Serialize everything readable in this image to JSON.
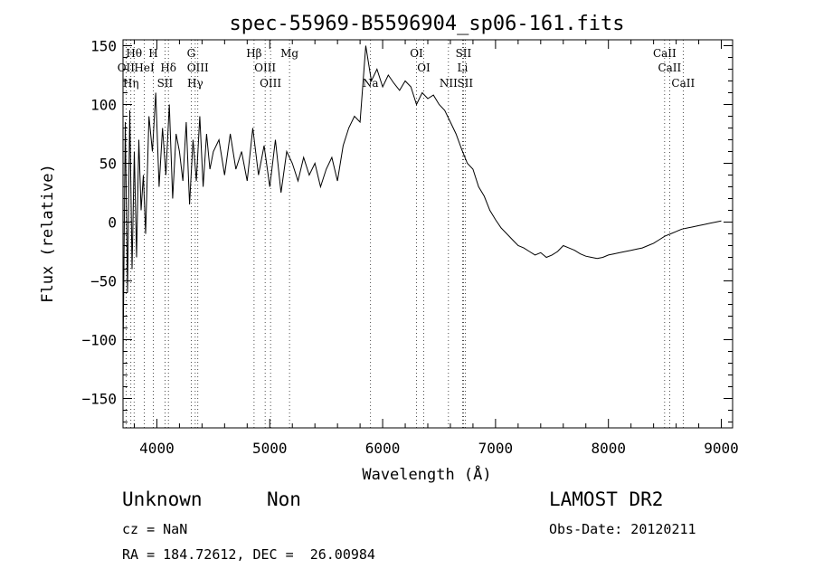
{
  "chart_data": {
    "type": "line",
    "title": "spec-55969-B5596904_sp06-161.fits",
    "xlabel": "Wavelength (Å)",
    "ylabel": "Flux (relative)",
    "xlim": [
      3700,
      9100
    ],
    "ylim": [
      -175,
      155
    ],
    "x_ticks": [
      4000,
      5000,
      6000,
      7000,
      8000,
      9000
    ],
    "y_ticks": [
      -150,
      -100,
      -50,
      0,
      50,
      100,
      150
    ],
    "x_tick_labels": [
      "4000",
      "5000",
      "6000",
      "7000",
      "8000",
      "9000"
    ],
    "y_tick_labels": [
      "−150",
      "−100",
      "−50",
      "0",
      "50",
      "100",
      "150"
    ],
    "grid": false,
    "series": [
      {
        "x": [
          3700,
          3720,
          3740,
          3760,
          3780,
          3800,
          3820,
          3840,
          3860,
          3880,
          3900,
          3930,
          3960,
          3990,
          4020,
          4050,
          4080,
          4110,
          4140,
          4170,
          4200,
          4230,
          4260,
          4290,
          4320,
          4350,
          4380,
          4410,
          4440,
          4470,
          4500,
          4550,
          4600,
          4650,
          4700,
          4750,
          4800,
          4850,
          4900,
          4950,
          5000,
          5050,
          5100,
          5150,
          5200,
          5250,
          5300,
          5350,
          5400,
          5450,
          5500,
          5550,
          5600,
          5650,
          5700,
          5750,
          5800,
          5850,
          5900,
          5950,
          6000,
          6050,
          6100,
          6150,
          6200,
          6250,
          6300,
          6350,
          6400,
          6450,
          6500,
          6550,
          6600,
          6650,
          6700,
          6750,
          6800,
          6850,
          6900,
          6950,
          7000,
          7050,
          7100,
          7150,
          7200,
          7250,
          7300,
          7350,
          7400,
          7450,
          7500,
          7550,
          7600,
          7650,
          7700,
          7750,
          7800,
          7850,
          7900,
          7950,
          8000,
          8050,
          8100,
          8150,
          8200,
          8250,
          8300,
          8350,
          8400,
          8450,
          8500,
          8550,
          8600,
          8650,
          8700,
          8750,
          8800,
          8850,
          8900,
          8950,
          9000
        ],
        "y": [
          -120,
          85,
          -60,
          95,
          -40,
          60,
          -30,
          70,
          10,
          40,
          -10,
          90,
          60,
          110,
          30,
          80,
          40,
          100,
          20,
          75,
          60,
          35,
          85,
          15,
          70,
          35,
          90,
          30,
          75,
          45,
          60,
          70,
          40,
          75,
          45,
          60,
          35,
          80,
          40,
          65,
          30,
          70,
          25,
          60,
          50,
          35,
          55,
          40,
          50,
          30,
          45,
          55,
          35,
          65,
          80,
          90,
          85,
          150,
          120,
          130,
          115,
          125,
          118,
          112,
          120,
          115,
          100,
          110,
          105,
          108,
          100,
          95,
          85,
          75,
          62,
          50,
          45,
          30,
          22,
          10,
          2,
          -5,
          -10,
          -15,
          -20,
          -22,
          -25,
          -28,
          -26,
          -30,
          -28,
          -25,
          -20,
          -22,
          -24,
          -27,
          -29,
          -30,
          -31,
          -30,
          -28,
          -27,
          -26,
          -25,
          -24,
          -23,
          -22,
          -20,
          -18,
          -15,
          -12,
          -10,
          -8,
          -6,
          -5,
          -4,
          -3,
          -2,
          -1,
          0,
          1
        ]
      }
    ],
    "lines": [
      {
        "wl": 3727,
        "label": "OII"
      },
      {
        "wl": 3770,
        "label": "Hη"
      },
      {
        "wl": 3798,
        "label": "Hθ"
      },
      {
        "wl": 3889,
        "label": "HeI"
      },
      {
        "wl": 3968,
        "label": "H"
      },
      {
        "wl": 4072,
        "label": "SII"
      },
      {
        "wl": 4102,
        "label": "Hδ"
      },
      {
        "wl": 4304,
        "label": "G"
      },
      {
        "wl": 4340,
        "label": "Hγ"
      },
      {
        "wl": 4363,
        "label": "OIII"
      },
      {
        "wl": 4861,
        "label": "Hβ"
      },
      {
        "wl": 4959,
        "label": "OIII"
      },
      {
        "wl": 5007,
        "label": "OIII"
      },
      {
        "wl": 5175,
        "label": "Mg"
      },
      {
        "wl": 5893,
        "label": "Na"
      },
      {
        "wl": 6300,
        "label": "OI"
      },
      {
        "wl": 6364,
        "label": "OI"
      },
      {
        "wl": 6583,
        "label": "NII"
      },
      {
        "wl": 6708,
        "label": "Li"
      },
      {
        "wl": 6716,
        "label": "SII"
      },
      {
        "wl": 6731,
        "label": "SII"
      },
      {
        "wl": 8498,
        "label": "CaII"
      },
      {
        "wl": 8542,
        "label": "CaII"
      },
      {
        "wl": 8662,
        "label": "CaII"
      }
    ]
  },
  "info": {
    "class": "Unknown",
    "subclass": "Non",
    "cz": "cz = NaN",
    "coords": "RA = 184.72612, DEC =  26.00984",
    "survey": "LAMOST DR2",
    "obsdate": "Obs-Date: 20120211"
  }
}
